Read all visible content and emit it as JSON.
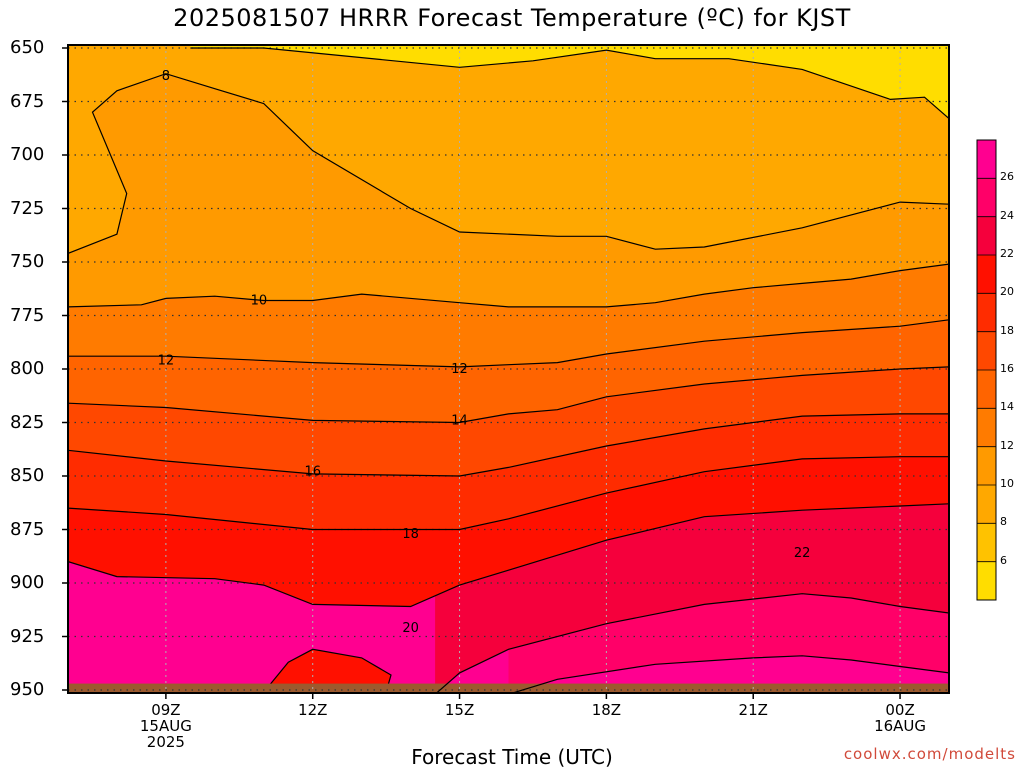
{
  "title": "2025081507 HRRR Forecast Temperature (ºC) for KJST",
  "x_axis_title": "Forecast Time (UTC)",
  "credit": "coolwx.com/modelts",
  "colors": {
    "bands": [
      "#ffe000",
      "#ffc400",
      "#ffa800",
      "#ff9000",
      "#ff7800",
      "#ff5f00",
      "#ff4200",
      "#ff1e00",
      "#f4003c",
      "#ff0a6e",
      "#ff00a0",
      "#ff3ca8"
    ],
    "ground": "#9c5a2e",
    "contour": "#000000",
    "grid": "#9a9a9a"
  },
  "chart_data": {
    "type": "heatmap",
    "title": "2025081507 HRRR Forecast Temperature (ºC) for KJST",
    "xlabel": "Forecast Time (UTC)",
    "ylabel": "",
    "x_ticks": [
      {
        "label": "09Z",
        "sub": [
          "15AUG",
          "2025"
        ]
      },
      {
        "label": "12Z",
        "sub": []
      },
      {
        "label": "15Z",
        "sub": []
      },
      {
        "label": "18Z",
        "sub": []
      },
      {
        "label": "21Z",
        "sub": []
      },
      {
        "label": "00Z",
        "sub": [
          "16AUG"
        ]
      }
    ],
    "x_hours": [
      9,
      12,
      15,
      18,
      21,
      24
    ],
    "x_range": [
      7,
      25
    ],
    "y_ticks": [
      650,
      675,
      700,
      725,
      750,
      775,
      800,
      825,
      850,
      875,
      900,
      925,
      950
    ],
    "y_range": [
      650,
      950
    ],
    "colorbar_ticks": [
      6,
      8,
      10,
      12,
      14,
      16,
      18,
      20,
      22,
      24,
      26
    ],
    "colorbar_range": [
      4,
      28
    ],
    "contour_labels": [
      {
        "value": "8",
        "x": 9.0,
        "y": 663
      },
      {
        "value": "10",
        "x": 10.9,
        "y": 768
      },
      {
        "value": "12",
        "x": 9.0,
        "y": 796
      },
      {
        "value": "12",
        "x": 15.0,
        "y": 800
      },
      {
        "value": "14",
        "x": 15.0,
        "y": 824
      },
      {
        "value": "16",
        "x": 12.0,
        "y": 848
      },
      {
        "value": "18",
        "x": 14.0,
        "y": 877
      },
      {
        "value": "20",
        "x": 14.0,
        "y": 921
      },
      {
        "value": "22",
        "x": 22.0,
        "y": 886
      }
    ],
    "isotherms": [
      {
        "value": 6,
        "points": [
          [
            9.5,
            650
          ],
          [
            11,
            650
          ],
          [
            15,
            659
          ],
          [
            16.5,
            656
          ],
          [
            18,
            651
          ],
          [
            19,
            655
          ],
          [
            20.5,
            655
          ],
          [
            22,
            660
          ],
          [
            23.8,
            674
          ],
          [
            24.5,
            673
          ],
          [
            25,
            683
          ]
        ]
      },
      {
        "value": 8,
        "points": [
          [
            7,
            746
          ],
          [
            8,
            737
          ],
          [
            8.2,
            718
          ],
          [
            7.5,
            680
          ],
          [
            8,
            670
          ],
          [
            9,
            662
          ],
          [
            10,
            669
          ],
          [
            11,
            676
          ],
          [
            12,
            698
          ],
          [
            14,
            725
          ],
          [
            15,
            736
          ],
          [
            17,
            738
          ],
          [
            18,
            738
          ],
          [
            19,
            744
          ],
          [
            20,
            743
          ],
          [
            22,
            734
          ],
          [
            24,
            722
          ],
          [
            25,
            723
          ]
        ]
      },
      {
        "value": 10,
        "points": [
          [
            7,
            771
          ],
          [
            8.5,
            770
          ],
          [
            9,
            767
          ],
          [
            10,
            766
          ],
          [
            11,
            768
          ],
          [
            12,
            768
          ],
          [
            13,
            765
          ],
          [
            15,
            769
          ],
          [
            16,
            771
          ],
          [
            17,
            771
          ],
          [
            18,
            771
          ],
          [
            19,
            769
          ],
          [
            20,
            765
          ],
          [
            21,
            762
          ],
          [
            22,
            760
          ],
          [
            23,
            758
          ],
          [
            24,
            754
          ],
          [
            25,
            751
          ]
        ]
      },
      {
        "value": 12,
        "points": [
          [
            7,
            794
          ],
          [
            9,
            794
          ],
          [
            12,
            797
          ],
          [
            15,
            799
          ],
          [
            16,
            798
          ],
          [
            17,
            797
          ],
          [
            18,
            793
          ],
          [
            20,
            787
          ],
          [
            22,
            783
          ],
          [
            24,
            780
          ],
          [
            25,
            777
          ]
        ]
      },
      {
        "value": 14,
        "points": [
          [
            7,
            816
          ],
          [
            9,
            818
          ],
          [
            12,
            824
          ],
          [
            15,
            825
          ],
          [
            16,
            821
          ],
          [
            17,
            819
          ],
          [
            18,
            813
          ],
          [
            20,
            807
          ],
          [
            22,
            803
          ],
          [
            24,
            800
          ],
          [
            25,
            799
          ]
        ]
      },
      {
        "value": 16,
        "points": [
          [
            7,
            838
          ],
          [
            9,
            843
          ],
          [
            12,
            849
          ],
          [
            15,
            850
          ],
          [
            16,
            846
          ],
          [
            18,
            836
          ],
          [
            20,
            828
          ],
          [
            22,
            822
          ],
          [
            24,
            821
          ],
          [
            25,
            821
          ]
        ]
      },
      {
        "value": 18,
        "points": [
          [
            7,
            865
          ],
          [
            9,
            868
          ],
          [
            12,
            875
          ],
          [
            15,
            875
          ],
          [
            16,
            870
          ],
          [
            18,
            858
          ],
          [
            20,
            848
          ],
          [
            22,
            842
          ],
          [
            24,
            841
          ],
          [
            25,
            841
          ]
        ]
      },
      {
        "value": 20,
        "points": [
          [
            7,
            890
          ],
          [
            8,
            897
          ],
          [
            10,
            898
          ],
          [
            11,
            901
          ],
          [
            12,
            910
          ],
          [
            14,
            911
          ],
          [
            15,
            901
          ],
          [
            16,
            894
          ],
          [
            18,
            880
          ],
          [
            20,
            869
          ],
          [
            22,
            866
          ],
          [
            24,
            864
          ],
          [
            25,
            863
          ]
        ]
      },
      {
        "value": 22,
        "points": [
          [
            14.5,
            952
          ],
          [
            15,
            942
          ],
          [
            16,
            931
          ],
          [
            18,
            919
          ],
          [
            20,
            910
          ],
          [
            22,
            905
          ],
          [
            23,
            907
          ],
          [
            24,
            911
          ],
          [
            25,
            914
          ]
        ]
      },
      {
        "value": 24,
        "points": [
          [
            16,
            952
          ],
          [
            17,
            945
          ],
          [
            19,
            938
          ],
          [
            21,
            935
          ],
          [
            22,
            934
          ],
          [
            23,
            936
          ],
          [
            24,
            939
          ],
          [
            25,
            942
          ]
        ]
      }
    ],
    "warm_pocket_20": [
      [
        11,
        951
      ],
      [
        11.5,
        937
      ],
      [
        12,
        931
      ],
      [
        13,
        935
      ],
      [
        13.6,
        943
      ],
      [
        13.5,
        951
      ]
    ],
    "ground_level": 947
  }
}
